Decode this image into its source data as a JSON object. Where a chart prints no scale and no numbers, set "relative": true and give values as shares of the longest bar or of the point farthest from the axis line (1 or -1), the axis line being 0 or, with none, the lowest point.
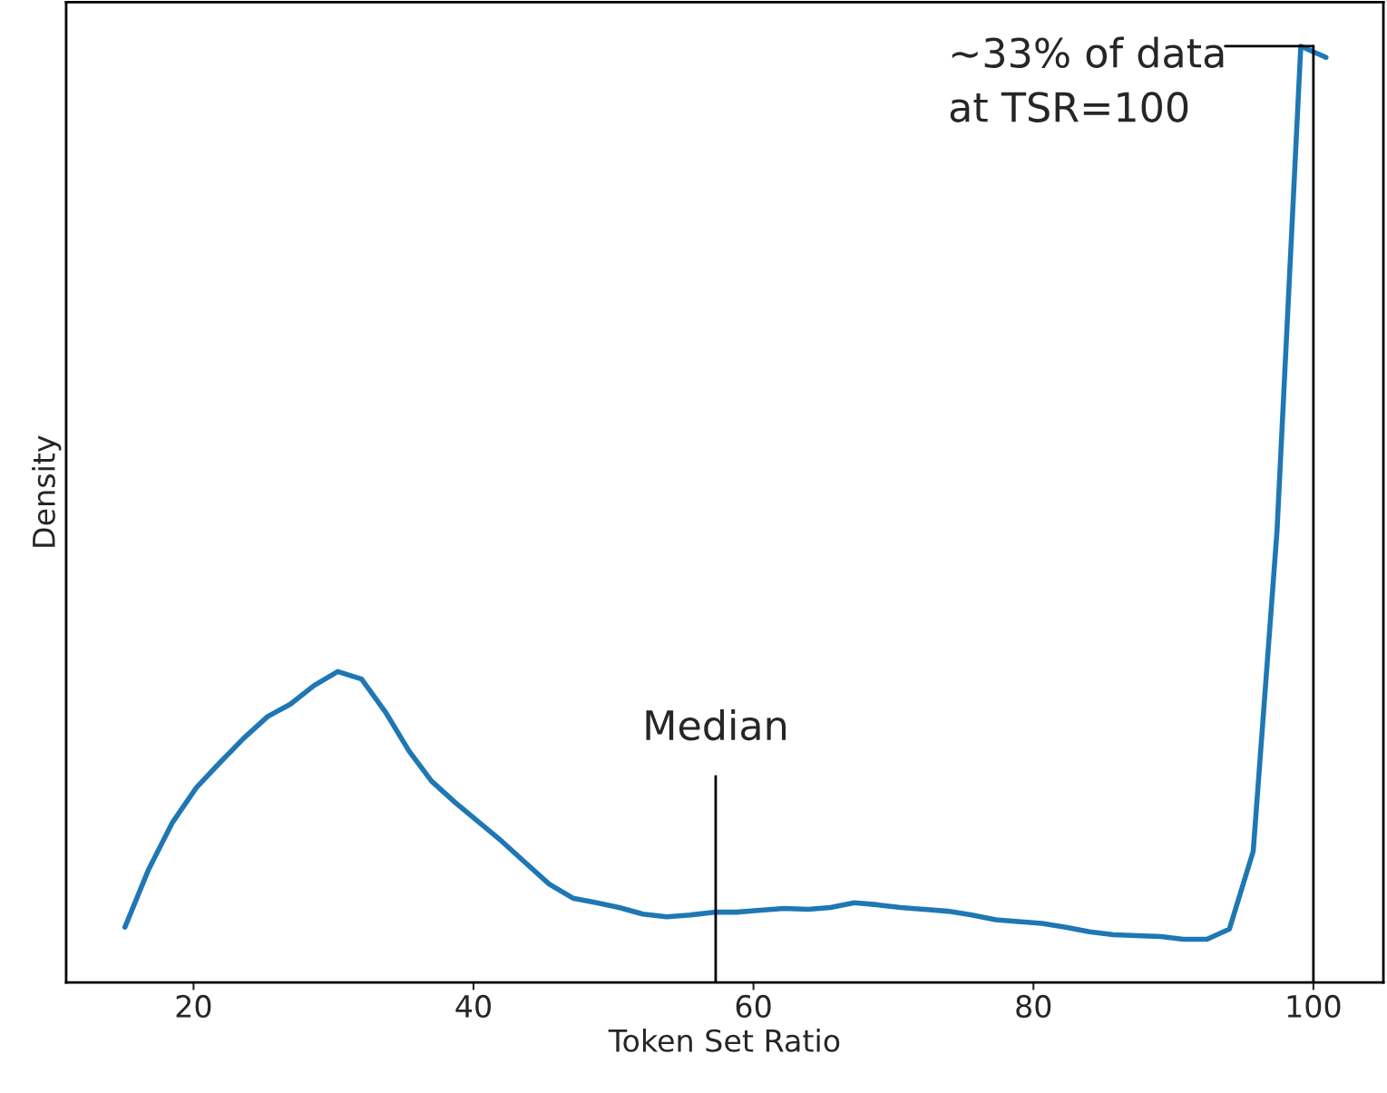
{
  "chart_data": {
    "type": "line",
    "relative": true,
    "xlabel": "Token Set Ratio",
    "ylabel": "Density",
    "xlim": [
      10.9,
      105
    ],
    "xticks": [
      20,
      40,
      60,
      80,
      100
    ],
    "marker": "none",
    "line_style": "solid",
    "series": [
      {
        "color": "#1f77b4",
        "x": [
          15.1,
          16.8,
          18.5,
          20.2,
          21.9,
          23.6,
          25.3,
          26.9,
          28.6,
          30.3,
          32.0,
          33.7,
          35.4,
          37.0,
          38.7,
          40.4,
          42.0,
          43.7,
          45.4,
          47.1,
          48.8,
          50.4,
          52.1,
          53.8,
          55.5,
          57.2,
          58.8,
          60.5,
          62.2,
          63.9,
          65.5,
          67.2,
          68.8,
          70.5,
          72.2,
          73.9,
          75.6,
          77.3,
          78.9,
          80.6,
          82.3,
          84.0,
          85.7,
          87.4,
          89.1,
          90.7,
          92.4,
          94.0,
          95.7,
          97.4,
          99.1,
          100.9
        ],
        "values": [
          0.059,
          0.121,
          0.171,
          0.208,
          0.235,
          0.261,
          0.284,
          0.297,
          0.317,
          0.332,
          0.324,
          0.289,
          0.247,
          0.215,
          0.192,
          0.171,
          0.151,
          0.128,
          0.105,
          0.09,
          0.085,
          0.08,
          0.073,
          0.07,
          0.072,
          0.075,
          0.075,
          0.077,
          0.079,
          0.078,
          0.08,
          0.085,
          0.083,
          0.08,
          0.078,
          0.076,
          0.072,
          0.067,
          0.065,
          0.063,
          0.059,
          0.054,
          0.051,
          0.05,
          0.049,
          0.046,
          0.046,
          0.057,
          0.14,
          0.482,
          1.0,
          0.988
        ]
      }
    ],
    "ref_lines": [
      {
        "axis": "x",
        "value": 57.3,
        "label": "Median",
        "color": "#000000"
      },
      {
        "axis": "x",
        "value": 100,
        "label": "~33% of data\nat TSR=100",
        "color": "#000000"
      }
    ]
  }
}
